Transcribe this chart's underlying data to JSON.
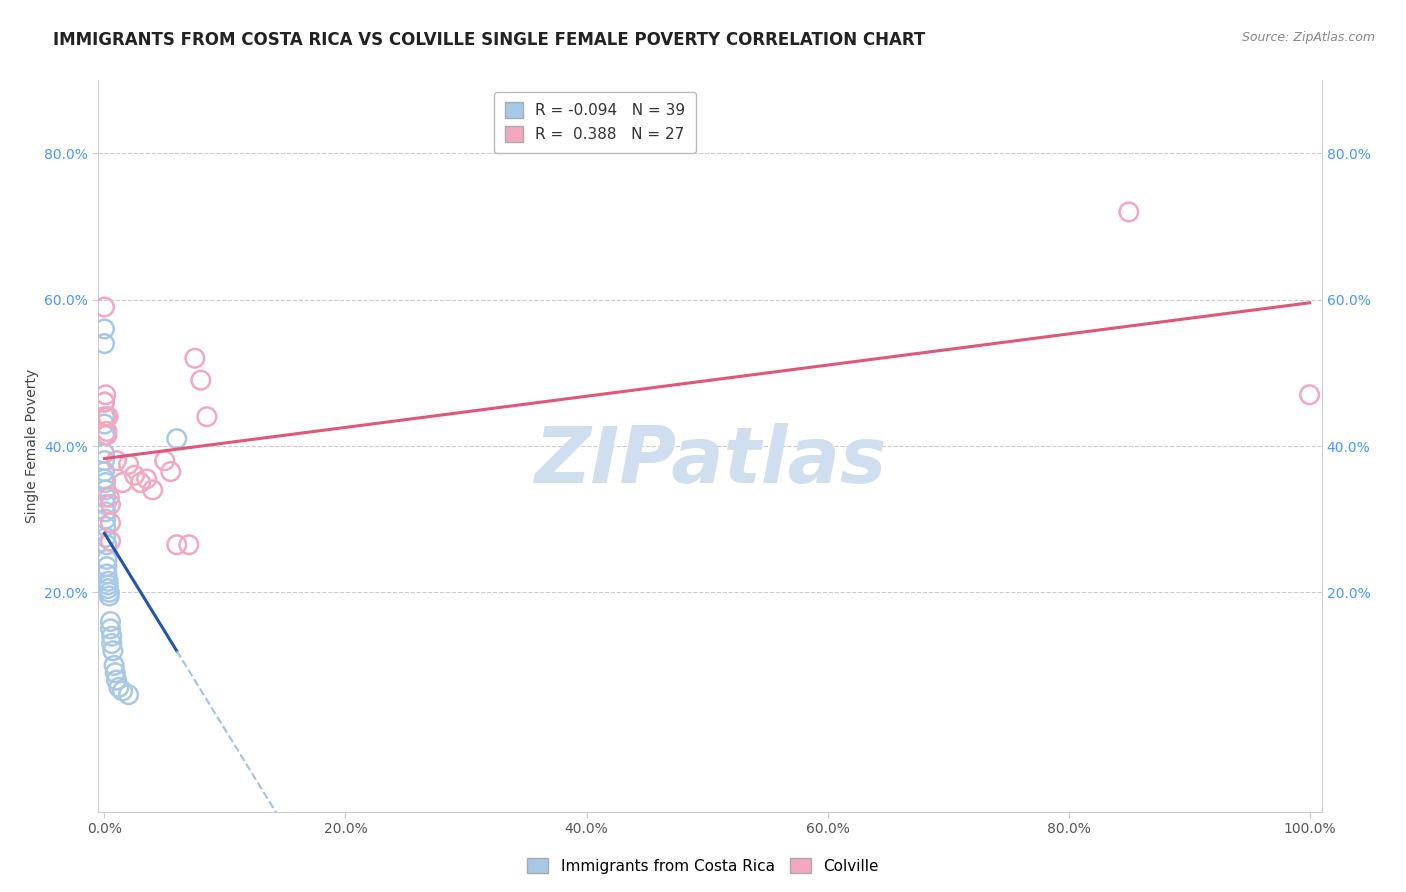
{
  "title": "IMMIGRANTS FROM COSTA RICA VS COLVILLE SINGLE FEMALE POVERTY CORRELATION CHART",
  "source": "Source: ZipAtlas.com",
  "ylabel": "Single Female Poverty",
  "legend_label_blue": "Immigrants from Costa Rica",
  "legend_label_pink": "Colville",
  "r_blue": -0.094,
  "n_blue": 39,
  "r_pink": 0.388,
  "n_pink": 27,
  "blue_x": [
    0.0,
    0.0,
    0.0,
    0.0,
    0.0,
    0.0,
    0.0,
    0.0,
    0.0,
    0.0,
    0.001,
    0.001,
    0.001,
    0.001,
    0.001,
    0.001,
    0.001,
    0.001,
    0.002,
    0.002,
    0.002,
    0.002,
    0.003,
    0.003,
    0.003,
    0.004,
    0.004,
    0.005,
    0.005,
    0.006,
    0.006,
    0.007,
    0.008,
    0.009,
    0.01,
    0.012,
    0.015,
    0.02,
    0.06
  ],
  "blue_y": [
    0.54,
    0.56,
    0.46,
    0.44,
    0.43,
    0.415,
    0.39,
    0.38,
    0.365,
    0.355,
    0.35,
    0.34,
    0.33,
    0.32,
    0.31,
    0.3,
    0.29,
    0.275,
    0.265,
    0.245,
    0.235,
    0.225,
    0.215,
    0.21,
    0.205,
    0.2,
    0.195,
    0.16,
    0.15,
    0.14,
    0.13,
    0.12,
    0.1,
    0.09,
    0.08,
    0.07,
    0.065,
    0.06,
    0.41
  ],
  "pink_x": [
    0.0,
    0.0,
    0.001,
    0.001,
    0.002,
    0.002,
    0.003,
    0.004,
    0.005,
    0.005,
    0.005,
    0.01,
    0.015,
    0.02,
    0.025,
    0.03,
    0.035,
    0.04,
    0.05,
    0.055,
    0.06,
    0.07,
    0.075,
    0.08,
    0.085,
    0.85,
    1.0
  ],
  "pink_y": [
    0.59,
    0.46,
    0.47,
    0.44,
    0.42,
    0.415,
    0.44,
    0.33,
    0.32,
    0.295,
    0.27,
    0.38,
    0.35,
    0.375,
    0.36,
    0.35,
    0.355,
    0.34,
    0.38,
    0.365,
    0.265,
    0.265,
    0.52,
    0.49,
    0.44,
    0.72,
    0.47
  ],
  "xlim": [
    -0.005,
    1.01
  ],
  "ylim": [
    -0.1,
    0.9
  ],
  "xticks": [
    0.0,
    0.2,
    0.4,
    0.6,
    0.8,
    1.0
  ],
  "xticklabels": [
    "0.0%",
    "20.0%",
    "40.0%",
    "60.0%",
    "80.0%",
    "100.0%"
  ],
  "yticks_left": [
    0.2,
    0.4,
    0.6,
    0.8
  ],
  "ytick_labels_left": [
    "20.0%",
    "40.0%",
    "60.0%",
    "80.0%"
  ],
  "color_blue": "#a8c8e8",
  "color_pink": "#f4a8c0",
  "line_blue_solid": "#2255aa",
  "line_pink_solid": "#e05878",
  "line_blue_dash": "#90b8e0",
  "watermark_text": "ZIPatlas",
  "watermark_color": "#d0dff0",
  "background_color": "#ffffff",
  "grid_color": "#cccccc",
  "tick_color_blue": "#4499ff",
  "title_fontsize": 12,
  "source_fontsize": 9,
  "axis_label_fontsize": 10,
  "tick_fontsize": 10,
  "legend_fontsize": 11
}
